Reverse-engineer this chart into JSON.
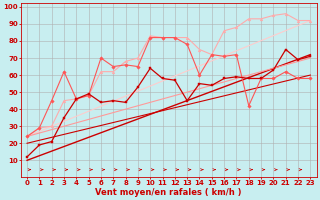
{
  "background_color": "#c8eef0",
  "grid_color": "#b0b0b0",
  "xlabel": "Vent moyen/en rafales ( km/h )",
  "xlabel_color": "#cc0000",
  "xlabel_fontsize": 6.0,
  "tick_color": "#cc0000",
  "tick_fontsize": 5.0,
  "xlim": [
    -0.5,
    23.5
  ],
  "ylim": [
    0,
    102
  ],
  "yticks": [
    10,
    20,
    30,
    40,
    50,
    60,
    70,
    80,
    90,
    100
  ],
  "xticks": [
    0,
    1,
    2,
    3,
    4,
    5,
    6,
    7,
    8,
    9,
    10,
    11,
    12,
    13,
    14,
    15,
    16,
    17,
    18,
    19,
    20,
    21,
    22,
    23
  ],
  "series": [
    {
      "x": [
        0,
        1,
        2,
        3,
        4,
        5,
        6,
        7,
        8,
        9,
        10,
        11,
        12,
        13,
        14,
        15,
        16,
        17,
        18,
        19,
        20,
        21,
        22,
        23
      ],
      "y": [
        12,
        19,
        21,
        35,
        46,
        49,
        44,
        45,
        44,
        53,
        64,
        58,
        57,
        45,
        55,
        54,
        58,
        59,
        58,
        58,
        63,
        75,
        69,
        71
      ],
      "color": "#cc0000",
      "marker": "s",
      "markersize": 1.8,
      "linewidth": 0.9,
      "zorder": 5
    },
    {
      "x": [
        0,
        1,
        2,
        3,
        4,
        5,
        6,
        7,
        8,
        9,
        10,
        11,
        12,
        13,
        14,
        15,
        16,
        17,
        18,
        19,
        20,
        21,
        22,
        23
      ],
      "y": [
        24,
        29,
        45,
        62,
        46,
        48,
        70,
        65,
        66,
        65,
        82,
        82,
        82,
        78,
        60,
        72,
        71,
        72,
        42,
        58,
        58,
        62,
        58,
        58
      ],
      "color": "#ff5555",
      "marker": "D",
      "markersize": 1.8,
      "linewidth": 0.8,
      "zorder": 4
    },
    {
      "x": [
        0,
        1,
        2,
        3,
        4,
        5,
        6,
        7,
        8,
        9,
        10,
        11,
        12,
        13,
        14,
        15,
        16,
        17,
        18,
        19,
        20,
        21,
        22,
        23
      ],
      "y": [
        24,
        29,
        30,
        45,
        46,
        48,
        62,
        62,
        68,
        70,
        83,
        82,
        82,
        82,
        75,
        72,
        86,
        88,
        93,
        93,
        95,
        96,
        92,
        92
      ],
      "color": "#ffaaaa",
      "marker": "^",
      "markersize": 2.0,
      "linewidth": 0.8,
      "zorder": 3
    },
    {
      "x": [
        0,
        23
      ],
      "y": [
        10,
        72
      ],
      "color": "#cc0000",
      "linewidth": 1.0,
      "zorder": 2
    },
    {
      "x": [
        0,
        23
      ],
      "y": [
        20,
        60
      ],
      "color": "#cc0000",
      "linewidth": 0.8,
      "zorder": 2
    },
    {
      "x": [
        0,
        23
      ],
      "y": [
        24,
        92
      ],
      "color": "#ffcccc",
      "linewidth": 0.8,
      "zorder": 2
    },
    {
      "x": [
        0,
        23
      ],
      "y": [
        24,
        70
      ],
      "color": "#ff9999",
      "linewidth": 0.8,
      "zorder": 2
    }
  ],
  "arrows": {
    "x_start": [
      0,
      1,
      2,
      3,
      4,
      5,
      6,
      7,
      8,
      9,
      10,
      11,
      12,
      13,
      14,
      15,
      16,
      17,
      18,
      19,
      20,
      21,
      22
    ],
    "y": 4.5,
    "color": "#cc0000"
  }
}
